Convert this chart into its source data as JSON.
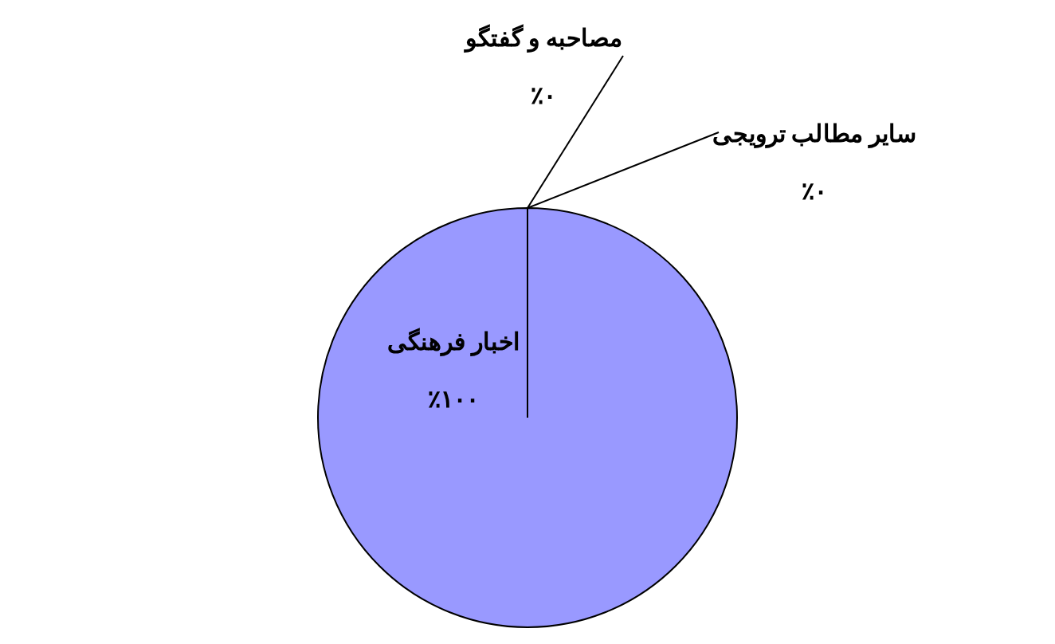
{
  "chart_data": {
    "type": "pie",
    "categories": [
      "اخبار فرهنگی",
      "مصاحبه و گفتگو",
      "سایر مطالب ترویجی"
    ],
    "values": [
      100,
      0,
      0
    ],
    "colors": [
      "#9999ff",
      "#8c8c5c",
      "#993366"
    ],
    "value_labels": [
      "٪۱۰۰",
      "٪۰",
      "٪۰"
    ],
    "legend": false
  }
}
